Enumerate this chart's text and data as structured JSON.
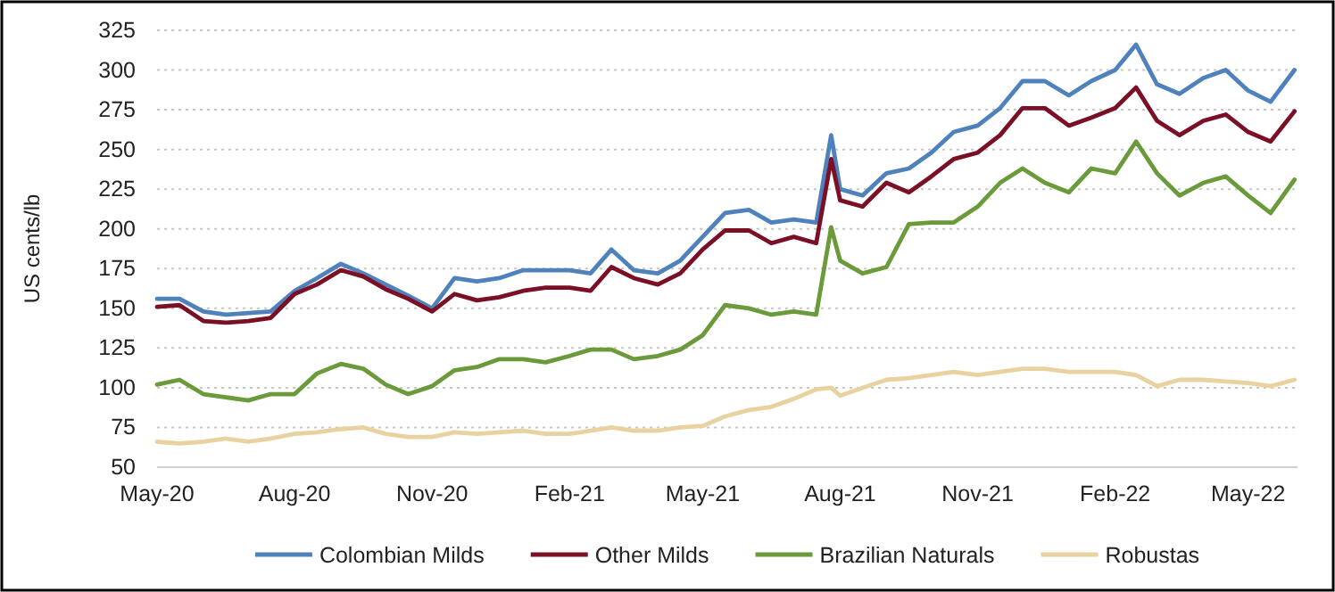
{
  "chart_data": {
    "type": "line",
    "ylabel": "US cents/lb",
    "x": [
      "2020-05-01",
      "2020-05-16",
      "2020-06-01",
      "2020-06-16",
      "2020-07-01",
      "2020-07-16",
      "2020-08-01",
      "2020-08-16",
      "2020-09-01",
      "2020-09-16",
      "2020-10-01",
      "2020-10-16",
      "2020-11-01",
      "2020-11-16",
      "2020-12-01",
      "2020-12-16",
      "2021-01-01",
      "2021-01-16",
      "2021-02-01",
      "2021-02-15",
      "2021-03-01",
      "2021-03-16",
      "2021-04-01",
      "2021-04-16",
      "2021-05-01",
      "2021-05-16",
      "2021-06-01",
      "2021-06-16",
      "2021-07-01",
      "2021-07-16",
      "2021-07-26",
      "2021-08-01",
      "2021-08-16",
      "2021-09-01",
      "2021-09-16",
      "2021-10-01",
      "2021-10-16",
      "2021-11-01",
      "2021-11-16",
      "2021-12-01",
      "2021-12-16",
      "2022-01-01",
      "2022-01-16",
      "2022-02-01",
      "2022-02-15",
      "2022-03-01",
      "2022-03-16",
      "2022-04-01",
      "2022-04-16",
      "2022-05-01",
      "2022-05-16",
      "2022-06-01"
    ],
    "series": [
      {
        "name": "Colombian Milds",
        "color": "#4f81bd",
        "values": [
          156,
          156,
          148,
          146,
          147,
          148,
          161,
          169,
          178,
          172,
          165,
          158,
          150,
          169,
          167,
          169,
          174,
          174,
          174,
          172,
          187,
          174,
          172,
          180,
          195,
          210,
          212,
          204,
          206,
          204,
          259,
          225,
          221,
          235,
          238,
          248,
          261,
          265,
          276,
          293,
          293,
          284,
          293,
          300,
          316,
          291,
          285,
          295,
          300,
          287,
          280,
          300
        ]
      },
      {
        "name": "Other Milds",
        "color": "#7b0f25",
        "values": [
          151,
          152,
          142,
          141,
          142,
          144,
          159,
          165,
          174,
          170,
          162,
          156,
          148,
          159,
          155,
          157,
          161,
          163,
          163,
          161,
          176,
          169,
          165,
          172,
          187,
          199,
          199,
          191,
          195,
          191,
          244,
          218,
          214,
          229,
          223,
          233,
          244,
          248,
          259,
          276,
          276,
          265,
          270,
          276,
          289,
          268,
          259,
          268,
          272,
          261,
          255,
          274
        ]
      },
      {
        "name": "Brazilian Naturals",
        "color": "#6a9a3a",
        "values": [
          102,
          105,
          96,
          94,
          92,
          96,
          96,
          109,
          115,
          112,
          102,
          96,
          101,
          111,
          113,
          118,
          118,
          116,
          120,
          124,
          124,
          118,
          120,
          124,
          133,
          152,
          150,
          146,
          148,
          146,
          201,
          180,
          172,
          176,
          203,
          204,
          204,
          214,
          229,
          238,
          229,
          223,
          238,
          235,
          255,
          235,
          221,
          229,
          233,
          221,
          210,
          231
        ]
      },
      {
        "name": "Robustas",
        "color": "#e8d2a0",
        "values": [
          66,
          65,
          66,
          68,
          66,
          68,
          71,
          72,
          74,
          75,
          71,
          69,
          69,
          72,
          71,
          72,
          73,
          71,
          71,
          73,
          75,
          73,
          73,
          75,
          76,
          82,
          86,
          88,
          93,
          99,
          100,
          95,
          100,
          105,
          106,
          108,
          110,
          108,
          110,
          112,
          112,
          110,
          110,
          110,
          108,
          101,
          105,
          105,
          104,
          103,
          101,
          105
        ]
      }
    ],
    "xlim": [
      "2020-05-01",
      "2022-06-03"
    ],
    "xticks": [
      {
        "value": "2020-05-01",
        "label": "May-20"
      },
      {
        "value": "2020-08-01",
        "label": "Aug-20"
      },
      {
        "value": "2020-11-01",
        "label": "Nov-20"
      },
      {
        "value": "2021-02-01",
        "label": "Feb-21"
      },
      {
        "value": "2021-05-01",
        "label": "May-21"
      },
      {
        "value": "2021-08-01",
        "label": "Aug-21"
      },
      {
        "value": "2021-11-01",
        "label": "Nov-21"
      },
      {
        "value": "2022-02-01",
        "label": "Feb-22"
      },
      {
        "value": "2022-05-01",
        "label": "May-22"
      }
    ],
    "ylim": [
      50,
      325
    ],
    "yticks": [
      50,
      75,
      100,
      125,
      150,
      175,
      200,
      225,
      250,
      275,
      300,
      325
    ],
    "grid": "y",
    "legend": "bottom",
    "line_style": "solid",
    "marker": "none"
  }
}
